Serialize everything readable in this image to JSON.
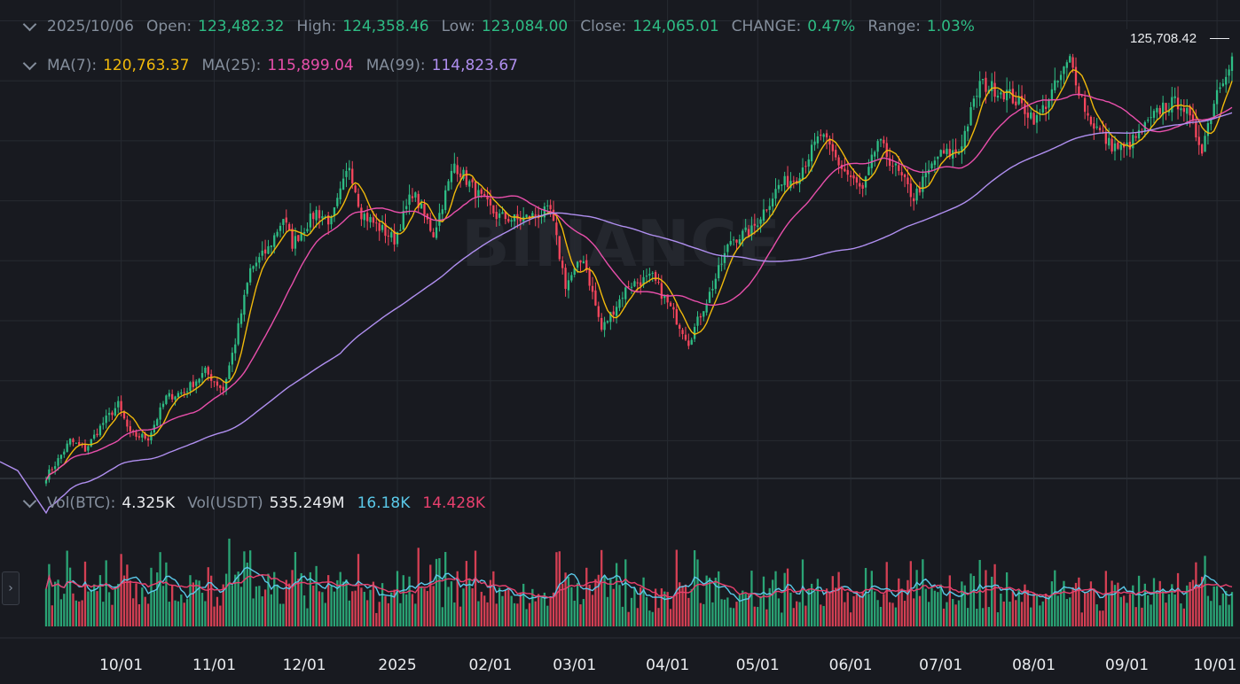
{
  "header": {
    "date": "2025/10/06",
    "open_label": "Open:",
    "open": "123,482.32",
    "high_label": "High:",
    "high": "124,358.46",
    "low_label": "Low:",
    "low": "123,084.00",
    "close_label": "Close:",
    "close": "124,065.01",
    "change_label": "CHANGE:",
    "change": "0.47%",
    "range_label": "Range:",
    "range": "1.03%"
  },
  "ma": {
    "ma7_label": "MA(7):",
    "ma7": "120,763.37",
    "ma25_label": "MA(25):",
    "ma25": "115,899.04",
    "ma99_label": "MA(99):",
    "ma99": "114,823.67"
  },
  "volume_header": {
    "vol_btc_label": "Vol(BTC):",
    "vol_btc": "4.325K",
    "vol_usdt_label": "Vol(USDT)",
    "vol_usdt": "535.249M",
    "ma_fast": "16.18K",
    "ma_slow": "14.428K"
  },
  "last_price": "125,708.42",
  "watermark": "BINANCE",
  "side_button_glyph": "›",
  "colors": {
    "background": "#181a20",
    "grid": "#262a31",
    "up": "#2ebd85",
    "down": "#f6465d",
    "ma7": "#f0b90b",
    "ma25": "#e84fab",
    "ma99": "#b08ff0",
    "vol_ma_fast": "#5ac8e8",
    "vol_ma_slow": "#e8406e",
    "label": "#848e9c",
    "value_green": "#2ebd85",
    "text_white": "#eaecef"
  },
  "chart_data": {
    "type": "candlestick",
    "interval": "1d",
    "x_tick_labels": [
      "10/01",
      "11/01",
      "12/01",
      "2025",
      "02/01",
      "03/01",
      "04/01",
      "05/01",
      "06/01",
      "07/01",
      "08/01",
      "09/01",
      "10/01"
    ],
    "anchors": [
      [
        "2024-09-06",
        54000
      ],
      [
        "2024-09-10",
        56800
      ],
      [
        "2024-09-14",
        60000
      ],
      [
        "2024-09-19",
        58500
      ],
      [
        "2024-09-25",
        63000
      ],
      [
        "2024-09-30",
        66000
      ],
      [
        "2024-10-04",
        61000
      ],
      [
        "2024-10-10",
        60500
      ],
      [
        "2024-10-16",
        67200
      ],
      [
        "2024-10-22",
        68200
      ],
      [
        "2024-10-29",
        71500
      ],
      [
        "2024-11-04",
        68500
      ],
      [
        "2024-11-08",
        76500
      ],
      [
        "2024-11-13",
        88500
      ],
      [
        "2024-11-19",
        92000
      ],
      [
        "2024-11-24",
        97200
      ],
      [
        "2024-11-27",
        92800
      ],
      [
        "2024-12-05",
        98200
      ],
      [
        "2024-12-10",
        96500
      ],
      [
        "2024-12-16",
        106000
      ],
      [
        "2024-12-20",
        98000
      ],
      [
        "2024-12-31",
        93500
      ],
      [
        "2025-01-06",
        101500
      ],
      [
        "2025-01-13",
        94500
      ],
      [
        "2025-01-20",
        106200
      ],
      [
        "2025-01-27",
        101500
      ],
      [
        "2025-02-03",
        97500
      ],
      [
        "2025-02-10",
        96800
      ],
      [
        "2025-02-21",
        98300
      ],
      [
        "2025-02-26",
        86000
      ],
      [
        "2025-03-04",
        90500
      ],
      [
        "2025-03-10",
        78500
      ],
      [
        "2025-03-19",
        86000
      ],
      [
        "2025-03-27",
        87200
      ],
      [
        "2025-04-06",
        78500
      ],
      [
        "2025-04-08",
        76500
      ],
      [
        "2025-04-15",
        84500
      ],
      [
        "2025-04-22",
        93500
      ],
      [
        "2025-04-29",
        95000
      ],
      [
        "2025-05-08",
        102500
      ],
      [
        "2025-05-14",
        104000
      ],
      [
        "2025-05-22",
        111000
      ],
      [
        "2025-05-29",
        105500
      ],
      [
        "2025-06-05",
        101500
      ],
      [
        "2025-06-10",
        110000
      ],
      [
        "2025-06-17",
        104500
      ],
      [
        "2025-06-22",
        100500
      ],
      [
        "2025-06-30",
        107500
      ],
      [
        "2025-07-07",
        108200
      ],
      [
        "2025-07-14",
        119500
      ],
      [
        "2025-07-23",
        118000
      ],
      [
        "2025-08-02",
        113500
      ],
      [
        "2025-08-13",
        123500
      ],
      [
        "2025-08-19",
        114000
      ],
      [
        "2025-08-26",
        109500
      ],
      [
        "2025-08-31",
        108500
      ],
      [
        "2025-09-05",
        111000
      ],
      [
        "2025-09-13",
        115800
      ],
      [
        "2025-09-19",
        116500
      ],
      [
        "2025-09-26",
        109000
      ],
      [
        "2025-10-01",
        118500
      ],
      [
        "2025-10-06",
        124065
      ]
    ],
    "ylim": [
      54000,
      132000
    ],
    "volume_ylim": [
      0,
      60000
    ]
  }
}
